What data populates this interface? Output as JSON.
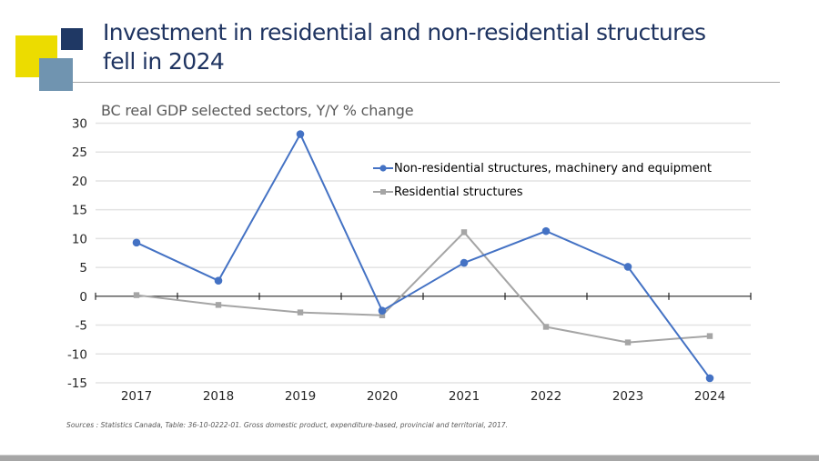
{
  "slide": {
    "title_line1": "Investment in residential and non-residential structures",
    "title_line2": "fell in 2024",
    "source": "Sources : Statistics Canada, Table: 36-10-0222-01. Gross domestic product, expenditure-based, provincial and territorial, 2017.",
    "colors": {
      "title": "#1f3461",
      "deco_yellow": "#ecdc00",
      "deco_navy": "#1f3864",
      "deco_steel": "#7094b0"
    }
  },
  "chart_data": {
    "type": "line",
    "title": "BC real GDP selected sectors, Y/Y % change",
    "xlabel": "",
    "ylabel": "",
    "categories": [
      "2017",
      "2018",
      "2019",
      "2020",
      "2021",
      "2022",
      "2023",
      "2024"
    ],
    "ylim": [
      -15,
      30
    ],
    "yticks": [
      30,
      25,
      20,
      15,
      10,
      5,
      0,
      -5,
      -10,
      -15
    ],
    "grid": true,
    "legend_position": "top-right",
    "series": [
      {
        "name": "Non-residential structures, machinery and equipment",
        "color": "#4472c4",
        "marker": "circle",
        "values": [
          9.3,
          2.7,
          28.1,
          -2.5,
          5.8,
          11.3,
          5.1,
          -14.2
        ]
      },
      {
        "name": "Residential structures",
        "color": "#a5a5a5",
        "marker": "square",
        "values": [
          0.2,
          -1.5,
          -2.8,
          -3.3,
          11.1,
          -5.3,
          -8.0,
          -6.9
        ]
      }
    ]
  }
}
